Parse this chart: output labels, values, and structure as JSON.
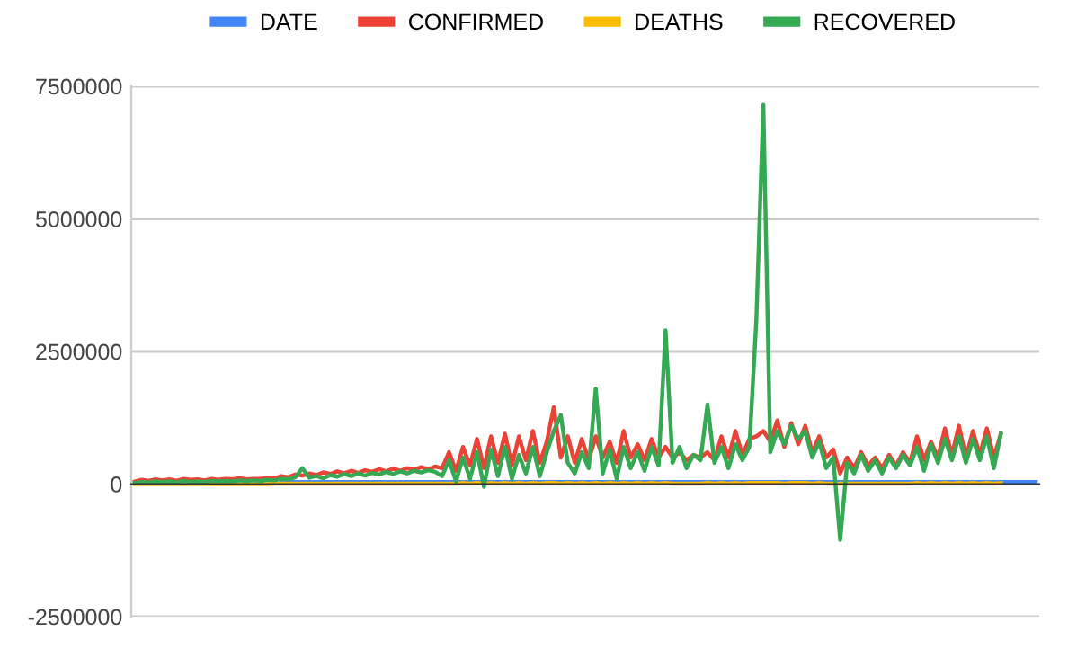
{
  "chart_data": {
    "type": "line",
    "categories": [
      null,
      null,
      null,
      null,
      null,
      null,
      null,
      null,
      null,
      null,
      null,
      null,
      null,
      null,
      null,
      null,
      null,
      null,
      null,
      null,
      null,
      null,
      null,
      null,
      null,
      null,
      null,
      null,
      null,
      null,
      null,
      null,
      null,
      null,
      null,
      null,
      null,
      null,
      null,
      null,
      null,
      null,
      null,
      null,
      null,
      null,
      null,
      null,
      null,
      null,
      null,
      null,
      null,
      null,
      null,
      null,
      null,
      null,
      null,
      null,
      null,
      null,
      null,
      null,
      null,
      null,
      null,
      null,
      null,
      null,
      null,
      null,
      null,
      null,
      null,
      null,
      null,
      null,
      null,
      null,
      null,
      null,
      null,
      null,
      null,
      null,
      null,
      null,
      null,
      null,
      null,
      null,
      null,
      null,
      null,
      null,
      null,
      null,
      null,
      null,
      null,
      null,
      null,
      null,
      null,
      null,
      null,
      null,
      null,
      null,
      null,
      null,
      null,
      null,
      null,
      null,
      null,
      null,
      null,
      null,
      null,
      null,
      null,
      null,
      null,
      null,
      null,
      null,
      null,
      null
    ],
    "series": [
      {
        "name": "DATE",
        "color": "#4285f4",
        "values": [
          null,
          null,
          null,
          null,
          null,
          null,
          null,
          null,
          null,
          null,
          null,
          null,
          null,
          null,
          null,
          null,
          null,
          null,
          null,
          null,
          null,
          40000,
          40000,
          40000,
          40000,
          40000,
          40000,
          40000,
          40000,
          40000,
          40000,
          40000,
          40000,
          40000,
          40000,
          40000,
          40000,
          40000,
          40000,
          40000,
          40000,
          40000,
          40000,
          40000,
          40000,
          40000,
          40000,
          40000,
          40000,
          40000,
          40000,
          40000,
          40000,
          40000,
          40000,
          40000,
          40000,
          40000,
          40000,
          40000,
          40000,
          40000,
          40000,
          40000,
          40000,
          40000,
          40000,
          40000,
          40000,
          40000,
          40000,
          40000,
          40000,
          40000,
          40000,
          40000,
          40000,
          40000,
          40000,
          40000,
          40000,
          40000,
          40000,
          40000,
          40000,
          40000,
          40000,
          40000,
          40000,
          40000,
          40000,
          40000,
          40000,
          40000,
          40000,
          40000,
          40000,
          40000,
          40000,
          40000,
          40000,
          40000,
          40000,
          40000,
          40000,
          40000,
          40000,
          40000,
          40000,
          40000,
          40000,
          40000,
          40000,
          40000,
          40000,
          40000,
          40000,
          40000,
          40000,
          40000,
          40000,
          40000,
          40000,
          40000,
          40000,
          40000,
          40000,
          40000,
          40000,
          40000
        ]
      },
      {
        "name": "CONFIRMED",
        "color": "#ea4335",
        "values": [
          50000,
          80000,
          60000,
          90000,
          70000,
          90000,
          60000,
          100000,
          80000,
          90000,
          70000,
          100000,
          80000,
          100000,
          90000,
          110000,
          90000,
          100000,
          100000,
          120000,
          110000,
          150000,
          130000,
          180000,
          160000,
          200000,
          170000,
          220000,
          190000,
          240000,
          200000,
          250000,
          210000,
          260000,
          230000,
          280000,
          240000,
          290000,
          250000,
          300000,
          270000,
          320000,
          280000,
          330000,
          300000,
          600000,
          250000,
          700000,
          350000,
          850000,
          300000,
          900000,
          400000,
          950000,
          350000,
          900000,
          450000,
          1000000,
          400000,
          800000,
          1450000,
          500000,
          900000,
          400000,
          850000,
          450000,
          900000,
          500000,
          800000,
          400000,
          1000000,
          500000,
          750000,
          450000,
          850000,
          500000,
          700000,
          500000,
          600000,
          450000,
          550000,
          500000,
          600000,
          450000,
          900000,
          500000,
          1000000,
          550000,
          850000,
          900000,
          1000000,
          800000,
          1200000,
          700000,
          1150000,
          750000,
          1100000,
          600000,
          900000,
          500000,
          650000,
          200000,
          500000,
          300000,
          600000,
          350000,
          500000,
          300000,
          550000,
          350000,
          600000,
          400000,
          900000,
          450000,
          800000,
          500000,
          1050000,
          550000,
          1100000,
          500000,
          1000000,
          550000,
          1050000,
          500000,
          950000,
          null,
          null,
          null,
          null,
          null
        ]
      },
      {
        "name": "DEATHS",
        "color": "#fbbc04",
        "values": [
          0,
          0,
          0,
          0,
          0,
          0,
          0,
          0,
          0,
          0,
          0,
          0,
          0,
          0,
          0,
          0,
          0,
          0,
          0,
          0,
          10000,
          10000,
          10000,
          10000,
          10000,
          10000,
          10000,
          10000,
          10000,
          10000,
          10000,
          10000,
          10000,
          10000,
          10000,
          10000,
          10000,
          10000,
          10000,
          10000,
          10000,
          10000,
          10000,
          10000,
          10000,
          10000,
          10000,
          20000,
          10000,
          20000,
          10000,
          20000,
          10000,
          20000,
          10000,
          20000,
          10000,
          20000,
          10000,
          20000,
          20000,
          10000,
          20000,
          10000,
          20000,
          10000,
          20000,
          10000,
          20000,
          10000,
          20000,
          10000,
          20000,
          10000,
          20000,
          10000,
          20000,
          10000,
          10000,
          10000,
          10000,
          10000,
          20000,
          10000,
          20000,
          10000,
          20000,
          10000,
          20000,
          20000,
          20000,
          20000,
          20000,
          10000,
          20000,
          20000,
          20000,
          10000,
          20000,
          10000,
          10000,
          10000,
          10000,
          10000,
          10000,
          10000,
          10000,
          10000,
          10000,
          10000,
          10000,
          10000,
          20000,
          10000,
          20000,
          10000,
          20000,
          10000,
          20000,
          10000,
          20000,
          10000,
          20000,
          10000,
          20000,
          null,
          null,
          null,
          null,
          null
        ]
      },
      {
        "name": "RECOVERED",
        "color": "#34a853",
        "values": [
          20000,
          40000,
          30000,
          50000,
          40000,
          50000,
          30000,
          60000,
          40000,
          50000,
          40000,
          60000,
          50000,
          60000,
          50000,
          70000,
          60000,
          70000,
          60000,
          80000,
          70000,
          100000,
          90000,
          130000,
          300000,
          120000,
          150000,
          110000,
          170000,
          140000,
          190000,
          150000,
          200000,
          160000,
          210000,
          180000,
          230000,
          190000,
          240000,
          200000,
          250000,
          220000,
          260000,
          230000,
          150000,
          450000,
          50000,
          500000,
          100000,
          600000,
          -50000,
          650000,
          150000,
          700000,
          100000,
          550000,
          200000,
          700000,
          150000,
          600000,
          1000000,
          1300000,
          400000,
          200000,
          600000,
          300000,
          1800000,
          200000,
          650000,
          100000,
          700000,
          300000,
          600000,
          250000,
          700000,
          350000,
          2900000,
          400000,
          700000,
          300000,
          550000,
          450000,
          1500000,
          400000,
          700000,
          300000,
          750000,
          450000,
          700000,
          3100000,
          7150000,
          600000,
          1000000,
          750000,
          1100000,
          850000,
          1000000,
          500000,
          800000,
          300000,
          500000,
          -1050000,
          400000,
          200000,
          550000,
          250000,
          450000,
          200000,
          500000,
          300000,
          550000,
          350000,
          700000,
          250000,
          750000,
          400000,
          850000,
          450000,
          900000,
          400000,
          850000,
          450000,
          900000,
          300000,
          950000,
          null,
          null,
          null,
          null,
          null
        ]
      }
    ],
    "ylim": [
      -2500000,
      7500000
    ],
    "yticks": [
      -2500000,
      0,
      2500000,
      5000000,
      7500000
    ],
    "grid": "y",
    "legend": "top",
    "tick_labels": "y",
    "line_style": "solid",
    "marker": "none"
  }
}
